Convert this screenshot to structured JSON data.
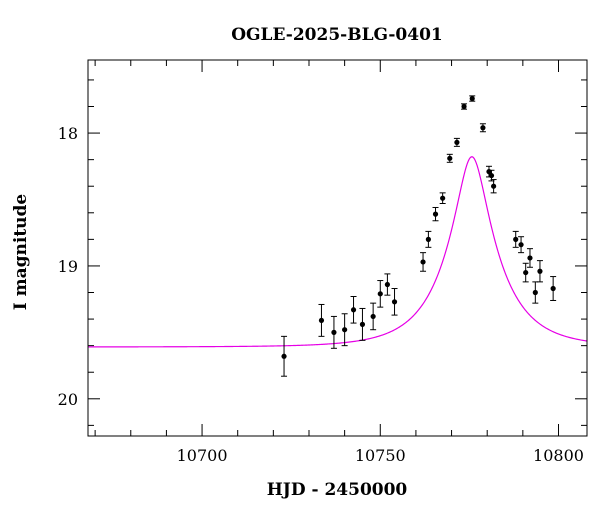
{
  "chart_data": {
    "type": "scatter",
    "title": "OGLE-2025-BLG-0401",
    "xlabel": "HJD - 2450000",
    "ylabel": "I magnitude",
    "xlim": [
      10668,
      10808
    ],
    "ylim": [
      20.28,
      17.45
    ],
    "y_inverted": true,
    "grid": false,
    "x_ticks": [
      10700,
      10750,
      10800
    ],
    "y_ticks": [
      18,
      19,
      20
    ],
    "x_minor_step": 10,
    "y_minor_step": 0.2,
    "colors": {
      "model": "#e600e6",
      "points": "#000000"
    },
    "model": {
      "t0": 10775.7,
      "u0": 0.275,
      "tE": 14.4,
      "baseline_mag": 19.61
    },
    "series": [
      {
        "points": [
          {
            "x": 10723.0,
            "y": 19.68,
            "err": 0.15
          },
          {
            "x": 10733.5,
            "y": 19.41,
            "err": 0.12
          },
          {
            "x": 10737.0,
            "y": 19.5,
            "err": 0.12
          },
          {
            "x": 10740.0,
            "y": 19.48,
            "err": 0.12
          },
          {
            "x": 10742.5,
            "y": 19.33,
            "err": 0.1
          },
          {
            "x": 10745.0,
            "y": 19.44,
            "err": 0.12
          },
          {
            "x": 10748.0,
            "y": 19.38,
            "err": 0.1
          },
          {
            "x": 10750.0,
            "y": 19.21,
            "err": 0.1
          },
          {
            "x": 10752.0,
            "y": 19.14,
            "err": 0.08
          },
          {
            "x": 10754.0,
            "y": 19.27,
            "err": 0.1
          },
          {
            "x": 10762.0,
            "y": 18.97,
            "err": 0.07
          },
          {
            "x": 10763.5,
            "y": 18.8,
            "err": 0.06
          },
          {
            "x": 10765.5,
            "y": 18.61,
            "err": 0.05
          },
          {
            "x": 10767.5,
            "y": 18.49,
            "err": 0.04
          },
          {
            "x": 10769.5,
            "y": 18.19,
            "err": 0.03
          },
          {
            "x": 10771.5,
            "y": 18.07,
            "err": 0.03
          },
          {
            "x": 10773.5,
            "y": 17.8,
            "err": 0.02
          },
          {
            "x": 10775.8,
            "y": 17.74,
            "err": 0.02
          },
          {
            "x": 10778.8,
            "y": 17.96,
            "err": 0.03
          },
          {
            "x": 10780.5,
            "y": 18.29,
            "err": 0.04
          },
          {
            "x": 10781.2,
            "y": 18.32,
            "err": 0.04
          },
          {
            "x": 10781.8,
            "y": 18.4,
            "err": 0.05
          },
          {
            "x": 10788.0,
            "y": 18.8,
            "err": 0.06
          },
          {
            "x": 10789.5,
            "y": 18.84,
            "err": 0.06
          },
          {
            "x": 10790.8,
            "y": 19.05,
            "err": 0.07
          },
          {
            "x": 10792.0,
            "y": 18.94,
            "err": 0.07
          },
          {
            "x": 10793.5,
            "y": 19.2,
            "err": 0.08
          },
          {
            "x": 10794.8,
            "y": 19.04,
            "err": 0.08
          },
          {
            "x": 10798.5,
            "y": 19.17,
            "err": 0.09
          }
        ]
      }
    ]
  }
}
